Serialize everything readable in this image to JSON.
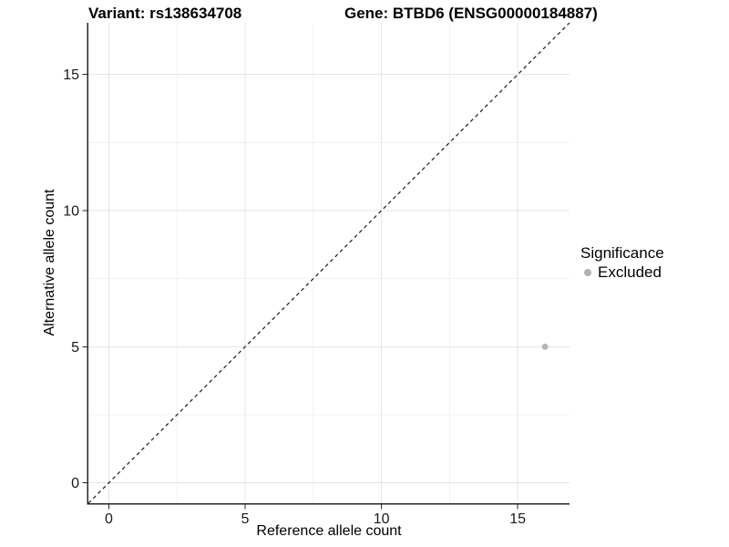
{
  "chart_data": {
    "type": "scatter",
    "titles": {
      "left": "Variant: rs138634708",
      "right": "Gene: BTBD6 (ENSG00000184887)"
    },
    "xlabel": "Reference allele count",
    "ylabel": "Alternative allele count",
    "xlim": [
      -0.75,
      16.9
    ],
    "ylim": [
      -0.75,
      16.9
    ],
    "xticks": [
      0,
      5,
      10,
      15
    ],
    "yticks": [
      0,
      5,
      10,
      15
    ],
    "x_minor": [
      2.5,
      7.5,
      12.5
    ],
    "y_minor": [
      2.5,
      7.5,
      12.5
    ],
    "grid": true,
    "identity_line": {
      "style": "dashed",
      "from": [
        -0.75,
        -0.75
      ],
      "to": [
        16.9,
        16.9
      ],
      "color": "#1a1a1a"
    },
    "series": [
      {
        "name": "Excluded",
        "color": "#b5b5b5",
        "points": [
          {
            "x": 16,
            "y": 5
          }
        ]
      }
    ],
    "legend": {
      "title": "Significance",
      "position": "right",
      "items": [
        {
          "label": "Excluded",
          "color": "#b0b0b0"
        }
      ]
    },
    "colors": {
      "background": "#ffffff",
      "grid_major": "#e4e4e4",
      "grid_minor": "#f1f1f1",
      "axis_line": "#262626",
      "tick_label": "#1a1a1a",
      "point": "#b5b5b5"
    }
  }
}
